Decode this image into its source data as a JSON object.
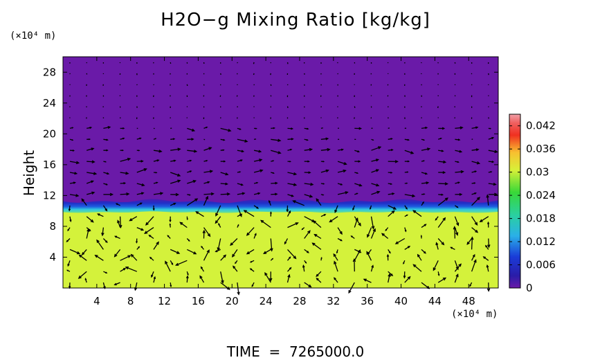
{
  "chart_data": {
    "type": "heatmap",
    "title": "H2O−g Mixing Ratio [kg/kg]",
    "ylabel": "Height",
    "y_unit": "(×10⁴ m)",
    "x_unit": "(×10⁴ m)",
    "x_ticks": [
      "4",
      "8",
      "12",
      "16",
      "20",
      "24",
      "28",
      "32",
      "36",
      "40",
      "44",
      "48"
    ],
    "y_ticks": [
      "4",
      "8",
      "12",
      "16",
      "20",
      "24",
      "28"
    ],
    "xlim": [
      0,
      51.5
    ],
    "ylim": [
      0,
      30
    ],
    "colorbar": {
      "ticks": [
        "0",
        "0.006",
        "0.012",
        "0.018",
        "0.024",
        "0.03",
        "0.036",
        "0.042"
      ],
      "range": [
        0,
        0.045
      ]
    },
    "field": {
      "lower_layer_value": 0.029,
      "upper_layer_value": 0.0005,
      "interface_height": 10.2
    },
    "vectors": "wind arrows overlaid on grid",
    "colors": {
      "upper": "#6a1aa8",
      "lower": "#d4f23b",
      "interface_blue": "#1f2fc8",
      "interface_cyan": "#2ad0e0"
    }
  },
  "footer": {
    "label": "TIME",
    "eq": "=",
    "value": "7265000.0"
  }
}
